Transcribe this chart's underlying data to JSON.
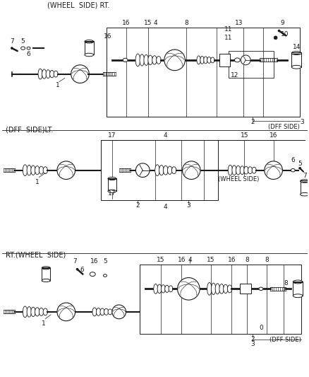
{
  "bg_color": "#ffffff",
  "line_color": "#1a1a1a",
  "font_size_label": 6.5,
  "font_size_section": 7.0,
  "sections": {
    "top_label": "(WHEEL  SIDE) RT.",
    "mid_label": "(DFF  SIDE)LT.",
    "bot_label": "RT.(WHEEL  SIDE)"
  }
}
